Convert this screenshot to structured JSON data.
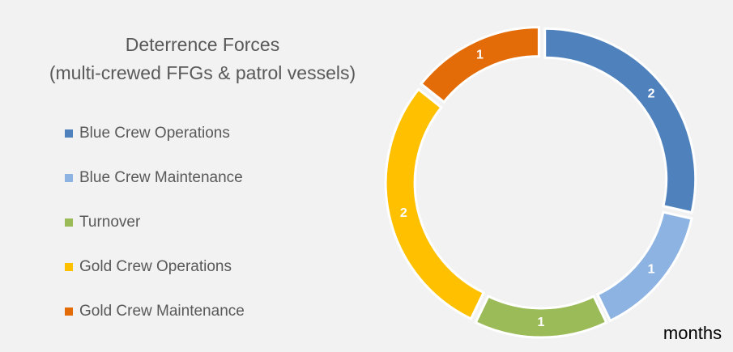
{
  "chart_data": {
    "type": "donut",
    "title": [
      "Deterrence Forces",
      "(multi-crewed FFGs & patrol vessels)"
    ],
    "categories": [
      "Blue Crew Operations",
      "Blue Crew Maintenance",
      "Turnover",
      "Gold Crew Operations",
      "Gold Crew Maintenance"
    ],
    "values": [
      2,
      1,
      1,
      2,
      1
    ],
    "colors": [
      "#4f81bd",
      "#8db3e2",
      "#9bbb59",
      "#ffc000",
      "#e36c09"
    ],
    "annotation": "months",
    "legend": "left"
  }
}
